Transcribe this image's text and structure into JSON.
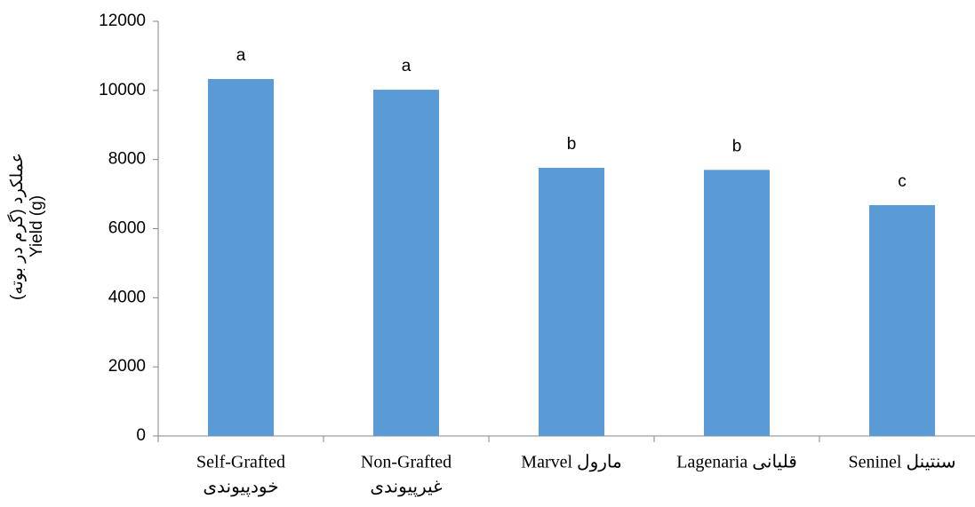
{
  "chart_data": {
    "type": "bar",
    "ylabel": [
      "عملکرد (گرم در بوته)",
      "Yield (g)"
    ],
    "categories": [
      [
        "Self-Grafted",
        "خودپیوندی"
      ],
      [
        "Non-Grafted",
        "غیرپیوندی"
      ],
      [
        "Marvel   مارول"
      ],
      [
        "Lagenaria قلیانی"
      ],
      [
        "Seninel  سنتینل"
      ]
    ],
    "values": [
      10330,
      10020,
      7760,
      7700,
      6680
    ],
    "annotations": [
      "a",
      "a",
      "b",
      "b",
      "c"
    ],
    "color": "#5b9bd5",
    "ylim": [
      0,
      12000
    ],
    "yticks": [
      0,
      2000,
      4000,
      6000,
      8000,
      10000,
      12000
    ],
    "grid": false
  }
}
